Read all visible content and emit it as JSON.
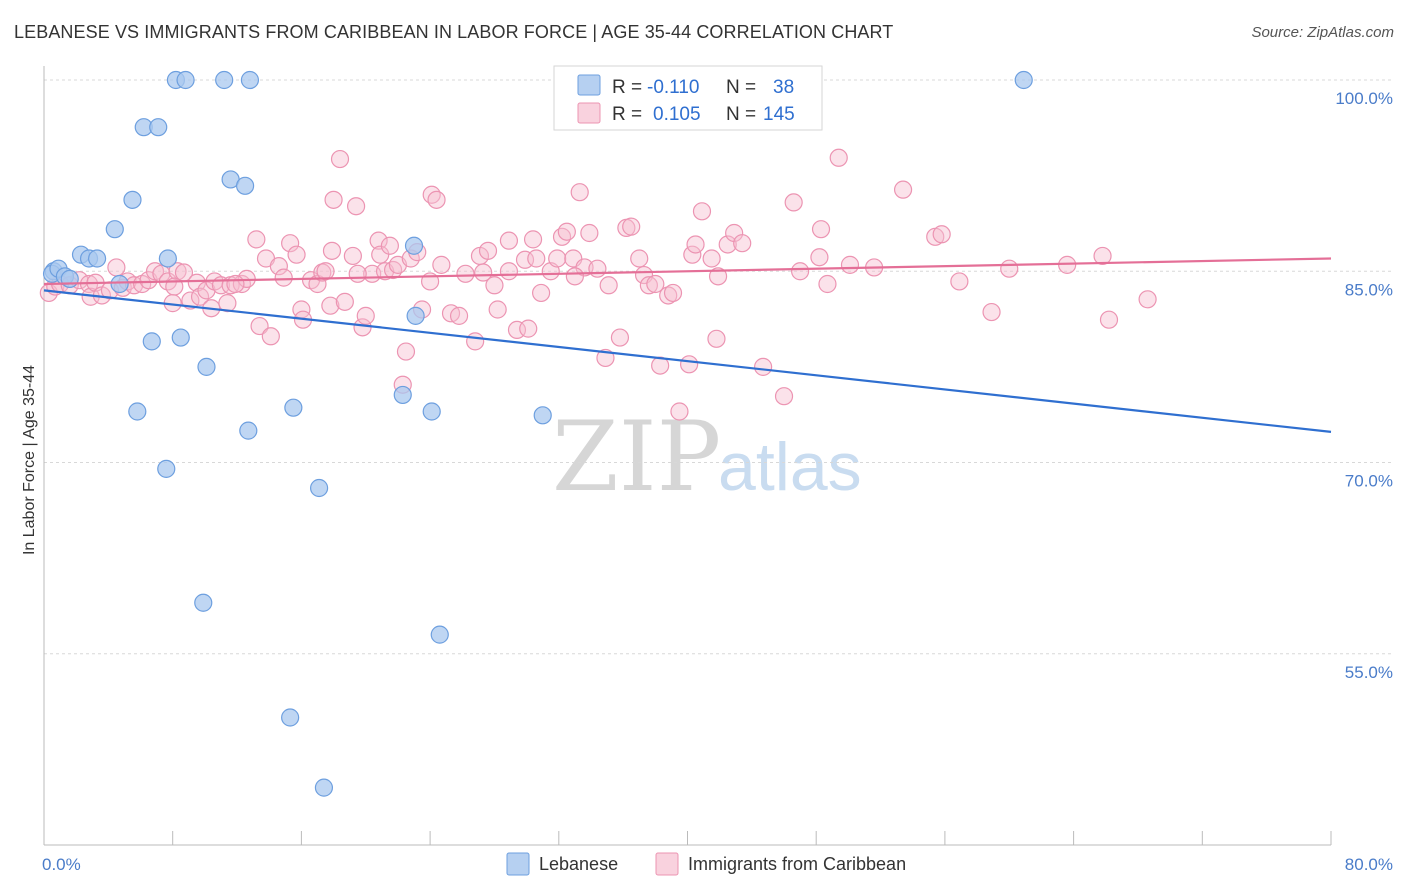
{
  "title": "LEBANESE VS IMMIGRANTS FROM CARIBBEAN IN LABOR FORCE | AGE 35-44 CORRELATION CHART",
  "source": "Source: ZipAtlas.com",
  "watermark": {
    "zip": "ZIP",
    "atlas": "atlas"
  },
  "colors": {
    "blue_fill": "#a9c8ef",
    "blue_stroke": "#6d9fdf",
    "blue_line": "#2f6fd0",
    "pink_fill": "#f6bfd0",
    "pink_stroke": "#ec94b2",
    "pink_line": "#e46f97",
    "grid": "#d8d8d8",
    "axis_label": "#4a7cc9"
  },
  "legend": {
    "rows": [
      {
        "r_label": "R =",
        "r_value": "-0.110",
        "n_label": "N =",
        "n_value": "38"
      },
      {
        "r_label": "R =",
        "r_value": "0.105",
        "n_label": "N =",
        "n_value": "145"
      }
    ]
  },
  "chart_data": {
    "type": "scatter",
    "title": "LEBANESE VS IMMIGRANTS FROM CARIBBEAN IN LABOR FORCE | AGE 35-44 CORRELATION CHART",
    "xlabel": "",
    "ylabel": "In Labor Force | Age 35-44",
    "xlim": [
      0,
      80
    ],
    "ylim": [
      42,
      102
    ],
    "x_tick_labels": [
      "0.0%",
      "80.0%"
    ],
    "y_ticks": [
      55,
      70,
      85,
      100
    ],
    "y_tick_labels": [
      "55.0%",
      "70.0%",
      "85.0%",
      "100.0%"
    ],
    "grid": true,
    "legend_position": "top-center",
    "series": [
      {
        "name": "Lebanese",
        "color": "blue",
        "trend": {
          "x": [
            0,
            80
          ],
          "y": [
            83.5,
            72.4
          ]
        },
        "points": [
          [
            0.6,
            85.0
          ],
          [
            0.5,
            84.8
          ],
          [
            0.9,
            85.2
          ],
          [
            1.3,
            84.6
          ],
          [
            1.6,
            84.4
          ],
          [
            2.3,
            86.3
          ],
          [
            2.8,
            86.0
          ],
          [
            3.3,
            86.0
          ],
          [
            4.4,
            88.3
          ],
          [
            4.7,
            84.0
          ],
          [
            5.5,
            90.6
          ],
          [
            6.2,
            96.3
          ],
          [
            7.1,
            96.3
          ],
          [
            7.7,
            86.0
          ],
          [
            6.7,
            79.5
          ],
          [
            7.6,
            69.5
          ],
          [
            8.5,
            79.8
          ],
          [
            8.2,
            100.0
          ],
          [
            8.8,
            100.0
          ],
          [
            11.2,
            100.0
          ],
          [
            12.8,
            100.0
          ],
          [
            11.6,
            92.2
          ],
          [
            12.5,
            91.7
          ],
          [
            10.1,
            77.5
          ],
          [
            12.7,
            72.5
          ],
          [
            5.8,
            74.0
          ],
          [
            15.5,
            74.3
          ],
          [
            9.9,
            59.0
          ],
          [
            15.3,
            50.0
          ],
          [
            17.1,
            68.0
          ],
          [
            17.4,
            44.5
          ],
          [
            24.1,
            74.0
          ],
          [
            23.1,
            81.5
          ],
          [
            22.3,
            75.3
          ],
          [
            24.6,
            56.5
          ],
          [
            23.0,
            87.0
          ],
          [
            31.0,
            73.7
          ],
          [
            60.9,
            100.0
          ]
        ]
      },
      {
        "name": "Immigrants from Caribbean",
        "color": "pink",
        "trend": {
          "x": [
            0,
            80
          ],
          "y": [
            84.0,
            86.0
          ]
        },
        "points": [
          [
            0.3,
            83.3
          ],
          [
            0.7,
            83.8
          ],
          [
            1.0,
            84.0
          ],
          [
            1.6,
            83.9
          ],
          [
            2.2,
            84.3
          ],
          [
            2.8,
            84.0
          ],
          [
            2.9,
            83.0
          ],
          [
            3.2,
            84.1
          ],
          [
            3.6,
            83.1
          ],
          [
            4.1,
            83.5
          ],
          [
            4.5,
            85.3
          ],
          [
            4.9,
            83.7
          ],
          [
            5.2,
            84.2
          ],
          [
            5.6,
            83.9
          ],
          [
            6.1,
            84.0
          ],
          [
            6.5,
            84.3
          ],
          [
            6.9,
            85.0
          ],
          [
            7.3,
            84.8
          ],
          [
            7.7,
            84.2
          ],
          [
            8.0,
            82.5
          ],
          [
            8.3,
            85.0
          ],
          [
            8.7,
            84.9
          ],
          [
            9.1,
            82.7
          ],
          [
            9.5,
            84.1
          ],
          [
            9.7,
            83.0
          ],
          [
            10.1,
            83.5
          ],
          [
            10.6,
            84.2
          ],
          [
            10.4,
            82.1
          ],
          [
            11.0,
            83.9
          ],
          [
            11.4,
            82.5
          ],
          [
            11.6,
            83.9
          ],
          [
            12.3,
            84.0
          ],
          [
            12.6,
            84.4
          ],
          [
            13.2,
            87.5
          ],
          [
            13.4,
            80.7
          ],
          [
            13.8,
            86.0
          ],
          [
            14.1,
            79.9
          ],
          [
            14.6,
            85.4
          ],
          [
            14.9,
            84.5
          ],
          [
            15.3,
            87.2
          ],
          [
            15.7,
            86.3
          ],
          [
            16.0,
            82.0
          ],
          [
            16.1,
            81.2
          ],
          [
            16.6,
            84.3
          ],
          [
            17.0,
            84.0
          ],
          [
            17.3,
            84.9
          ],
          [
            17.5,
            85.0
          ],
          [
            17.8,
            82.3
          ],
          [
            17.9,
            86.6
          ],
          [
            18.0,
            90.6
          ],
          [
            18.4,
            93.8
          ],
          [
            18.7,
            82.6
          ],
          [
            19.2,
            86.2
          ],
          [
            19.4,
            90.1
          ],
          [
            19.8,
            80.6
          ],
          [
            20.0,
            81.5
          ],
          [
            20.4,
            84.8
          ],
          [
            20.8,
            87.4
          ],
          [
            20.9,
            86.3
          ],
          [
            21.2,
            85.0
          ],
          [
            21.5,
            87.0
          ],
          [
            21.7,
            85.1
          ],
          [
            22.0,
            85.5
          ],
          [
            22.3,
            76.1
          ],
          [
            22.5,
            78.7
          ],
          [
            22.8,
            86.0
          ],
          [
            23.2,
            86.5
          ],
          [
            23.5,
            82.0
          ],
          [
            24.0,
            84.2
          ],
          [
            24.1,
            91.0
          ],
          [
            24.4,
            90.6
          ],
          [
            24.7,
            85.5
          ],
          [
            25.3,
            81.7
          ],
          [
            25.8,
            81.5
          ],
          [
            26.2,
            84.8
          ],
          [
            26.8,
            79.5
          ],
          [
            27.1,
            86.2
          ],
          [
            27.6,
            86.6
          ],
          [
            28.0,
            83.9
          ],
          [
            28.2,
            82.0
          ],
          [
            28.9,
            87.4
          ],
          [
            28.9,
            85.0
          ],
          [
            29.4,
            80.4
          ],
          [
            29.9,
            85.9
          ],
          [
            30.1,
            80.5
          ],
          [
            30.4,
            87.5
          ],
          [
            30.6,
            86.0
          ],
          [
            30.9,
            83.3
          ],
          [
            31.5,
            85.0
          ],
          [
            31.9,
            86.0
          ],
          [
            32.2,
            87.7
          ],
          [
            32.5,
            88.1
          ],
          [
            32.9,
            86.0
          ],
          [
            33.3,
            91.2
          ],
          [
            33.6,
            85.3
          ],
          [
            33.9,
            88.0
          ],
          [
            34.4,
            85.2
          ],
          [
            34.9,
            78.2
          ],
          [
            35.1,
            83.9
          ],
          [
            35.8,
            79.8
          ],
          [
            36.2,
            88.4
          ],
          [
            36.5,
            88.5
          ],
          [
            37.0,
            86.0
          ],
          [
            37.3,
            84.7
          ],
          [
            37.6,
            83.9
          ],
          [
            38.0,
            84.0
          ],
          [
            38.3,
            77.6
          ],
          [
            38.8,
            83.1
          ],
          [
            39.1,
            83.3
          ],
          [
            39.5,
            74.0
          ],
          [
            40.1,
            77.7
          ],
          [
            40.3,
            86.3
          ],
          [
            40.5,
            87.1
          ],
          [
            40.9,
            89.7
          ],
          [
            41.5,
            86.0
          ],
          [
            41.8,
            79.7
          ],
          [
            41.9,
            84.6
          ],
          [
            42.5,
            87.1
          ],
          [
            42.9,
            88.0
          ],
          [
            43.4,
            87.2
          ],
          [
            44.7,
            77.5
          ],
          [
            46.0,
            75.2
          ],
          [
            46.6,
            90.4
          ],
          [
            47.0,
            85.0
          ],
          [
            48.2,
            86.1
          ],
          [
            48.3,
            88.3
          ],
          [
            48.7,
            84.0
          ],
          [
            49.4,
            93.9
          ],
          [
            50.1,
            85.5
          ],
          [
            51.6,
            85.3
          ],
          [
            53.4,
            91.4
          ],
          [
            55.4,
            87.7
          ],
          [
            55.8,
            87.9
          ],
          [
            56.9,
            84.2
          ],
          [
            58.9,
            81.8
          ],
          [
            60.0,
            85.2
          ],
          [
            63.6,
            85.5
          ],
          [
            65.8,
            86.2
          ],
          [
            66.2,
            81.2
          ],
          [
            68.6,
            82.8
          ],
          [
            33.0,
            84.6
          ],
          [
            27.3,
            84.9
          ],
          [
            8.1,
            83.8
          ],
          [
            11.9,
            84.0
          ],
          [
            19.5,
            84.8
          ]
        ]
      }
    ]
  },
  "bottom_legend": {
    "items": [
      {
        "label": "Lebanese",
        "color": "blue"
      },
      {
        "label": "Immigrants from Caribbean",
        "color": "pink"
      }
    ]
  }
}
